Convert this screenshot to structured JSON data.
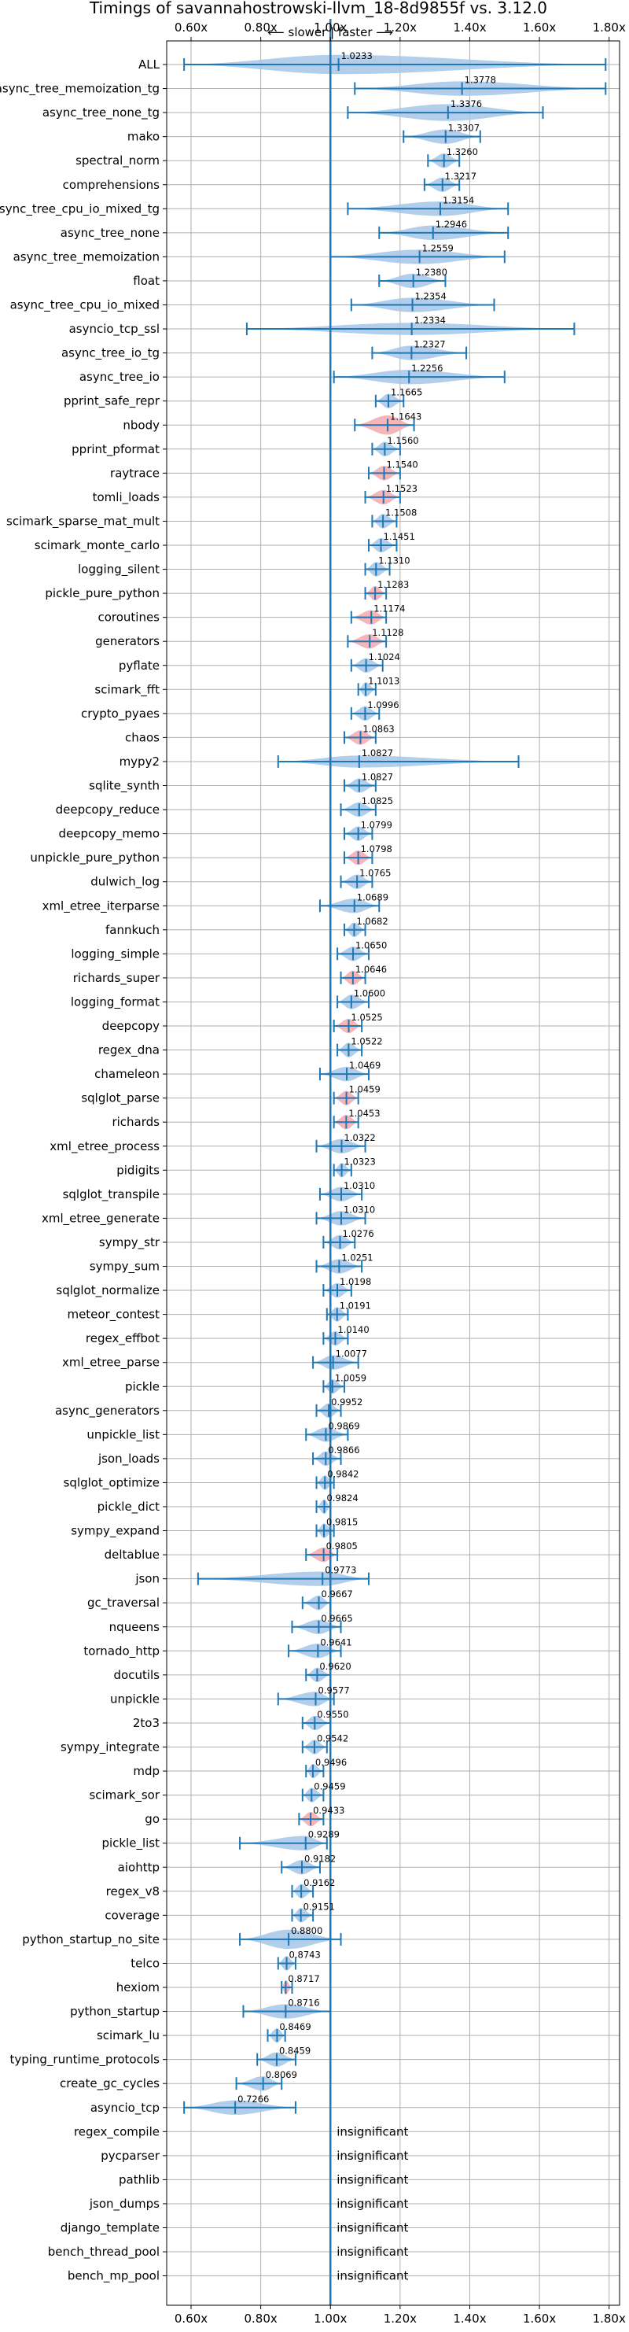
{
  "chart_data": {
    "type": "violin",
    "title": "Timings of savannahostrowski-llvm_18-8d9855f vs. 3.12.0",
    "subtitle": "⟵ slower | faster ⟶",
    "xlim": [
      0.53,
      1.83
    ],
    "x_ticks": [
      0.6,
      0.8,
      1.0,
      1.2,
      1.4,
      1.6,
      1.8
    ],
    "x_tick_labels": [
      "0.60x",
      "0.80x",
      "1.00x",
      "1.20x",
      "1.40x",
      "1.60x",
      "1.80x"
    ],
    "reference_line": 1.0,
    "grid": true,
    "colors": {
      "faster": "#a4c6e6",
      "slower": "#f6a8ad",
      "whisker": "#1f77b4",
      "axis": "#1f77b4"
    },
    "insignificant_text": "insignificant",
    "benchmarks": [
      {
        "name": "ALL",
        "value": 1.0233,
        "label": "1.0233",
        "lo": 0.58,
        "hi": 1.79,
        "width": 0.8,
        "slower": false
      },
      {
        "name": "async_tree_memoization_tg",
        "value": 1.3778,
        "label": "1.3778",
        "lo": 1.07,
        "hi": 1.79,
        "width": 0.6,
        "slower": false
      },
      {
        "name": "async_tree_none_tg",
        "value": 1.3376,
        "label": "1.3376",
        "lo": 1.05,
        "hi": 1.61,
        "width": 0.7,
        "slower": false
      },
      {
        "name": "mako",
        "value": 1.3307,
        "label": "1.3307",
        "lo": 1.21,
        "hi": 1.43,
        "width": 0.6,
        "slower": false
      },
      {
        "name": "spectral_norm",
        "value": 1.326,
        "label": "1.3260",
        "lo": 1.28,
        "hi": 1.37,
        "width": 0.6,
        "slower": false
      },
      {
        "name": "comprehensions",
        "value": 1.3217,
        "label": "1.3217",
        "lo": 1.27,
        "hi": 1.37,
        "width": 0.6,
        "slower": false
      },
      {
        "name": "async_tree_cpu_io_mixed_tg",
        "value": 1.3154,
        "label": "1.3154",
        "lo": 1.05,
        "hi": 1.51,
        "width": 0.6,
        "slower": false
      },
      {
        "name": "async_tree_none",
        "value": 1.2946,
        "label": "1.2946",
        "lo": 1.14,
        "hi": 1.51,
        "width": 0.6,
        "slower": false
      },
      {
        "name": "async_tree_memoization",
        "value": 1.2559,
        "label": "1.2559",
        "lo": 1.0,
        "hi": 1.5,
        "width": 0.6,
        "slower": false
      },
      {
        "name": "float",
        "value": 1.238,
        "label": "1.2380",
        "lo": 1.14,
        "hi": 1.33,
        "width": 0.6,
        "slower": false
      },
      {
        "name": "async_tree_cpu_io_mixed",
        "value": 1.2354,
        "label": "1.2354",
        "lo": 1.06,
        "hi": 1.47,
        "width": 0.6,
        "slower": false
      },
      {
        "name": "asyncio_tcp_ssl",
        "value": 1.2334,
        "label": "1.2334",
        "lo": 0.76,
        "hi": 1.7,
        "width": 0.5,
        "slower": false
      },
      {
        "name": "async_tree_io_tg",
        "value": 1.2327,
        "label": "1.2327",
        "lo": 1.12,
        "hi": 1.39,
        "width": 0.6,
        "slower": false
      },
      {
        "name": "async_tree_io",
        "value": 1.2256,
        "label": "1.2256",
        "lo": 1.01,
        "hi": 1.5,
        "width": 0.6,
        "slower": false
      },
      {
        "name": "pprint_safe_repr",
        "value": 1.1665,
        "label": "1.1665",
        "lo": 1.13,
        "hi": 1.21,
        "width": 0.6,
        "slower": false
      },
      {
        "name": "nbody",
        "value": 1.1643,
        "label": "1.1643",
        "lo": 1.07,
        "hi": 1.24,
        "width": 0.8,
        "slower": true
      },
      {
        "name": "pprint_pformat",
        "value": 1.156,
        "label": "1.1560",
        "lo": 1.12,
        "hi": 1.2,
        "width": 0.6,
        "slower": false
      },
      {
        "name": "raytrace",
        "value": 1.154,
        "label": "1.1540",
        "lo": 1.11,
        "hi": 1.2,
        "width": 0.6,
        "slower": true
      },
      {
        "name": "tomli_loads",
        "value": 1.1523,
        "label": "1.1523",
        "lo": 1.1,
        "hi": 1.2,
        "width": 0.6,
        "slower": true
      },
      {
        "name": "scimark_sparse_mat_mult",
        "value": 1.1508,
        "label": "1.1508",
        "lo": 1.12,
        "hi": 1.19,
        "width": 0.6,
        "slower": false
      },
      {
        "name": "scimark_monte_carlo",
        "value": 1.1451,
        "label": "1.1451",
        "lo": 1.11,
        "hi": 1.19,
        "width": 0.6,
        "slower": false
      },
      {
        "name": "logging_silent",
        "value": 1.131,
        "label": "1.1310",
        "lo": 1.1,
        "hi": 1.17,
        "width": 0.6,
        "slower": false
      },
      {
        "name": "pickle_pure_python",
        "value": 1.1283,
        "label": "1.1283",
        "lo": 1.1,
        "hi": 1.16,
        "width": 0.6,
        "slower": true
      },
      {
        "name": "coroutines",
        "value": 1.1174,
        "label": "1.1174",
        "lo": 1.06,
        "hi": 1.16,
        "width": 0.6,
        "slower": true
      },
      {
        "name": "generators",
        "value": 1.1128,
        "label": "1.1128",
        "lo": 1.05,
        "hi": 1.16,
        "width": 0.6,
        "slower": true
      },
      {
        "name": "pyflate",
        "value": 1.1024,
        "label": "1.1024",
        "lo": 1.06,
        "hi": 1.15,
        "width": 0.6,
        "slower": false
      },
      {
        "name": "scimark_fft",
        "value": 1.1013,
        "label": "1.1013",
        "lo": 1.08,
        "hi": 1.13,
        "width": 0.6,
        "slower": false
      },
      {
        "name": "crypto_pyaes",
        "value": 1.0996,
        "label": "1.0996",
        "lo": 1.06,
        "hi": 1.14,
        "width": 0.6,
        "slower": false
      },
      {
        "name": "chaos",
        "value": 1.0863,
        "label": "1.0863",
        "lo": 1.04,
        "hi": 1.13,
        "width": 0.6,
        "slower": true
      },
      {
        "name": "mypy2",
        "value": 1.0827,
        "label": "1.0827",
        "lo": 0.85,
        "hi": 1.54,
        "width": 0.5,
        "slower": false
      },
      {
        "name": "sqlite_synth",
        "value": 1.0827,
        "label": "1.0827",
        "lo": 1.04,
        "hi": 1.13,
        "width": 0.6,
        "slower": false
      },
      {
        "name": "deepcopy_reduce",
        "value": 1.0825,
        "label": "1.0825",
        "lo": 1.03,
        "hi": 1.13,
        "width": 0.6,
        "slower": false
      },
      {
        "name": "deepcopy_memo",
        "value": 1.0799,
        "label": "1.0799",
        "lo": 1.04,
        "hi": 1.12,
        "width": 0.6,
        "slower": false
      },
      {
        "name": "unpickle_pure_python",
        "value": 1.0798,
        "label": "1.0798",
        "lo": 1.04,
        "hi": 1.12,
        "width": 0.6,
        "slower": true
      },
      {
        "name": "dulwich_log",
        "value": 1.0765,
        "label": "1.0765",
        "lo": 1.03,
        "hi": 1.12,
        "width": 0.6,
        "slower": false
      },
      {
        "name": "xml_etree_iterparse",
        "value": 1.0689,
        "label": "1.0689",
        "lo": 0.97,
        "hi": 1.14,
        "width": 0.6,
        "slower": false
      },
      {
        "name": "fannkuch",
        "value": 1.0682,
        "label": "1.0682",
        "lo": 1.04,
        "hi": 1.1,
        "width": 0.6,
        "slower": false
      },
      {
        "name": "logging_simple",
        "value": 1.065,
        "label": "1.0650",
        "lo": 1.02,
        "hi": 1.11,
        "width": 0.6,
        "slower": false
      },
      {
        "name": "richards_super",
        "value": 1.0646,
        "label": "1.0646",
        "lo": 1.03,
        "hi": 1.1,
        "width": 0.6,
        "slower": true
      },
      {
        "name": "logging_format",
        "value": 1.06,
        "label": "1.0600",
        "lo": 1.02,
        "hi": 1.11,
        "width": 0.6,
        "slower": false
      },
      {
        "name": "deepcopy",
        "value": 1.0525,
        "label": "1.0525",
        "lo": 1.01,
        "hi": 1.09,
        "width": 0.6,
        "slower": true
      },
      {
        "name": "regex_dna",
        "value": 1.0522,
        "label": "1.0522",
        "lo": 1.02,
        "hi": 1.09,
        "width": 0.6,
        "slower": false
      },
      {
        "name": "chameleon",
        "value": 1.0469,
        "label": "1.0469",
        "lo": 0.97,
        "hi": 1.11,
        "width": 0.6,
        "slower": false
      },
      {
        "name": "sqlglot_parse",
        "value": 1.0459,
        "label": "1.0459",
        "lo": 1.01,
        "hi": 1.08,
        "width": 0.6,
        "slower": true
      },
      {
        "name": "richards",
        "value": 1.0453,
        "label": "1.0453",
        "lo": 1.01,
        "hi": 1.08,
        "width": 0.6,
        "slower": true
      },
      {
        "name": "xml_etree_process",
        "value": 1.0322,
        "label": "1.0322",
        "lo": 0.96,
        "hi": 1.1,
        "width": 0.6,
        "slower": false
      },
      {
        "name": "pidigits",
        "value": 1.0323,
        "label": "1.0323",
        "lo": 1.01,
        "hi": 1.06,
        "width": 0.6,
        "slower": false
      },
      {
        "name": "sqlglot_transpile",
        "value": 1.031,
        "label": "1.0310",
        "lo": 0.97,
        "hi": 1.09,
        "width": 0.6,
        "slower": false
      },
      {
        "name": "xml_etree_generate",
        "value": 1.031,
        "label": "1.0310",
        "lo": 0.96,
        "hi": 1.1,
        "width": 0.6,
        "slower": false
      },
      {
        "name": "sympy_str",
        "value": 1.0276,
        "label": "1.0276",
        "lo": 0.98,
        "hi": 1.07,
        "width": 0.6,
        "slower": false
      },
      {
        "name": "sympy_sum",
        "value": 1.0251,
        "label": "1.0251",
        "lo": 0.96,
        "hi": 1.09,
        "width": 0.6,
        "slower": false
      },
      {
        "name": "sqlglot_normalize",
        "value": 1.0198,
        "label": "1.0198",
        "lo": 0.98,
        "hi": 1.06,
        "width": 0.6,
        "slower": false
      },
      {
        "name": "meteor_contest",
        "value": 1.0191,
        "label": "1.0191",
        "lo": 0.99,
        "hi": 1.05,
        "width": 0.6,
        "slower": false
      },
      {
        "name": "regex_effbot",
        "value": 1.014,
        "label": "1.0140",
        "lo": 0.98,
        "hi": 1.05,
        "width": 0.6,
        "slower": false
      },
      {
        "name": "xml_etree_parse",
        "value": 1.0077,
        "label": "1.0077",
        "lo": 0.95,
        "hi": 1.08,
        "width": 0.6,
        "slower": false
      },
      {
        "name": "pickle",
        "value": 1.0059,
        "label": "1.0059",
        "lo": 0.98,
        "hi": 1.04,
        "width": 0.6,
        "slower": false
      },
      {
        "name": "async_generators",
        "value": 0.9952,
        "label": "0.9952",
        "lo": 0.96,
        "hi": 1.03,
        "width": 0.6,
        "slower": false
      },
      {
        "name": "unpickle_list",
        "value": 0.9869,
        "label": "0.9869",
        "lo": 0.93,
        "hi": 1.05,
        "width": 0.6,
        "slower": false
      },
      {
        "name": "json_loads",
        "value": 0.9866,
        "label": "0.9866",
        "lo": 0.95,
        "hi": 1.03,
        "width": 0.6,
        "slower": false
      },
      {
        "name": "sqlglot_optimize",
        "value": 0.9842,
        "label": "0.9842",
        "lo": 0.96,
        "hi": 1.01,
        "width": 0.6,
        "slower": false
      },
      {
        "name": "pickle_dict",
        "value": 0.9824,
        "label": "0.9824",
        "lo": 0.96,
        "hi": 1.0,
        "width": 0.6,
        "slower": false
      },
      {
        "name": "sympy_expand",
        "value": 0.9815,
        "label": "0.9815",
        "lo": 0.96,
        "hi": 1.01,
        "width": 0.6,
        "slower": false
      },
      {
        "name": "deltablue",
        "value": 0.9805,
        "label": "0.9805",
        "lo": 0.93,
        "hi": 1.02,
        "width": 0.6,
        "slower": true
      },
      {
        "name": "json",
        "value": 0.9773,
        "label": "0.9773",
        "lo": 0.62,
        "hi": 1.11,
        "width": 0.6,
        "slower": false
      },
      {
        "name": "gc_traversal",
        "value": 0.9667,
        "label": "0.9667",
        "lo": 0.92,
        "hi": 1.0,
        "width": 0.6,
        "slower": false
      },
      {
        "name": "nqueens",
        "value": 0.9665,
        "label": "0.9665",
        "lo": 0.89,
        "hi": 1.03,
        "width": 0.6,
        "slower": false
      },
      {
        "name": "tornado_http",
        "value": 0.9641,
        "label": "0.9641",
        "lo": 0.88,
        "hi": 1.03,
        "width": 0.6,
        "slower": false
      },
      {
        "name": "docutils",
        "value": 0.962,
        "label": "0.9620",
        "lo": 0.93,
        "hi": 1.0,
        "width": 0.6,
        "slower": false
      },
      {
        "name": "unpickle",
        "value": 0.9577,
        "label": "0.9577",
        "lo": 0.85,
        "hi": 1.01,
        "width": 0.6,
        "slower": false
      },
      {
        "name": "2to3",
        "value": 0.955,
        "label": "0.9550",
        "lo": 0.92,
        "hi": 1.0,
        "width": 0.6,
        "slower": false
      },
      {
        "name": "sympy_integrate",
        "value": 0.9542,
        "label": "0.9542",
        "lo": 0.92,
        "hi": 0.99,
        "width": 0.6,
        "slower": false
      },
      {
        "name": "mdp",
        "value": 0.9496,
        "label": "0.9496",
        "lo": 0.93,
        "hi": 0.98,
        "width": 0.6,
        "slower": false
      },
      {
        "name": "scimark_sor",
        "value": 0.9459,
        "label": "0.9459",
        "lo": 0.92,
        "hi": 0.98,
        "width": 0.6,
        "slower": false
      },
      {
        "name": "go",
        "value": 0.9433,
        "label": "0.9433",
        "lo": 0.91,
        "hi": 0.98,
        "width": 0.6,
        "slower": true
      },
      {
        "name": "pickle_list",
        "value": 0.9289,
        "label": "0.9289",
        "lo": 0.74,
        "hi": 0.99,
        "width": 0.6,
        "slower": false
      },
      {
        "name": "aiohttp",
        "value": 0.9182,
        "label": "0.9182",
        "lo": 0.86,
        "hi": 0.97,
        "width": 0.6,
        "slower": false
      },
      {
        "name": "regex_v8",
        "value": 0.9162,
        "label": "0.9162",
        "lo": 0.89,
        "hi": 0.95,
        "width": 0.6,
        "slower": false
      },
      {
        "name": "coverage",
        "value": 0.9151,
        "label": "0.9151",
        "lo": 0.89,
        "hi": 0.95,
        "width": 0.6,
        "slower": false
      },
      {
        "name": "python_startup_no_site",
        "value": 0.88,
        "label": "0.8800",
        "lo": 0.74,
        "hi": 1.03,
        "width": 0.8,
        "slower": false
      },
      {
        "name": "telco",
        "value": 0.8743,
        "label": "0.8743",
        "lo": 0.85,
        "hi": 0.9,
        "width": 0.6,
        "slower": false
      },
      {
        "name": "hexiom",
        "value": 0.8717,
        "label": "0.8717",
        "lo": 0.86,
        "hi": 0.89,
        "width": 0.6,
        "slower": true
      },
      {
        "name": "python_startup",
        "value": 0.8716,
        "label": "0.8716",
        "lo": 0.75,
        "hi": 1.0,
        "width": 0.6,
        "slower": false
      },
      {
        "name": "scimark_lu",
        "value": 0.8469,
        "label": "0.8469",
        "lo": 0.82,
        "hi": 0.87,
        "width": 0.6,
        "slower": false
      },
      {
        "name": "typing_runtime_protocols",
        "value": 0.8459,
        "label": "0.8459",
        "lo": 0.79,
        "hi": 0.9,
        "width": 0.6,
        "slower": false
      },
      {
        "name": "create_gc_cycles",
        "value": 0.8069,
        "label": "0.8069",
        "lo": 0.73,
        "hi": 0.86,
        "width": 0.6,
        "slower": false
      },
      {
        "name": "asyncio_tcp",
        "value": 0.7266,
        "label": "0.7266",
        "lo": 0.58,
        "hi": 0.9,
        "width": 0.6,
        "slower": false
      },
      {
        "name": "regex_compile",
        "insignificant": true
      },
      {
        "name": "pycparser",
        "insignificant": true
      },
      {
        "name": "pathlib",
        "insignificant": true
      },
      {
        "name": "json_dumps",
        "insignificant": true
      },
      {
        "name": "django_template",
        "insignificant": true
      },
      {
        "name": "bench_thread_pool",
        "insignificant": true
      },
      {
        "name": "bench_mp_pool",
        "insignificant": true
      }
    ]
  }
}
